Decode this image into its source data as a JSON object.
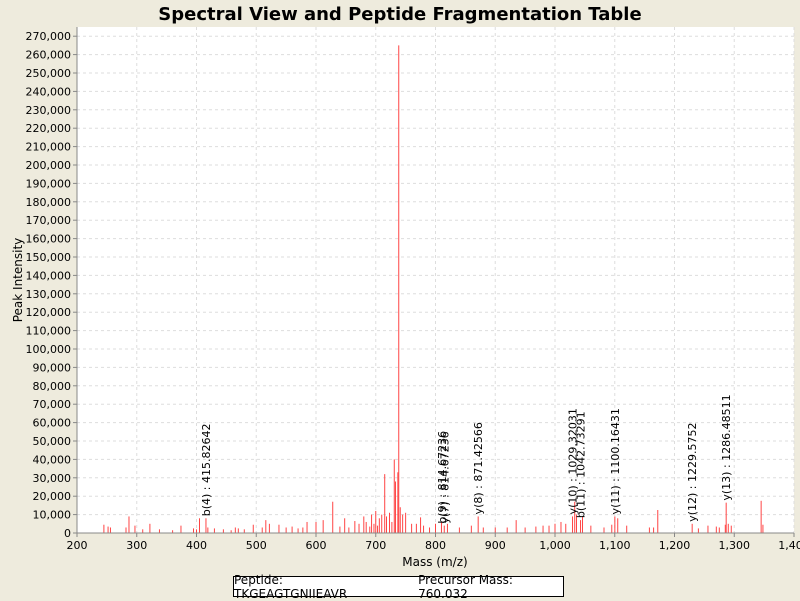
{
  "chart_data": {
    "type": "bar",
    "title": "Spectral View and Peptide Fragmentation Table",
    "xlabel": "Mass (m/z)",
    "ylabel": "Peak Intensity",
    "xlim": [
      200,
      1400
    ],
    "ylim": [
      0,
      275000
    ],
    "x_ticks": [
      200,
      300,
      400,
      500,
      600,
      700,
      800,
      900,
      1000,
      1100,
      1200,
      1300,
      1400
    ],
    "x_tick_labels": [
      "200",
      "300",
      "400",
      "500",
      "600",
      "700",
      "800",
      "900",
      "1,000",
      "1,100",
      "1,200",
      "1,300",
      "1,400"
    ],
    "y_ticks": [
      0,
      10000,
      20000,
      30000,
      40000,
      50000,
      60000,
      70000,
      80000,
      90000,
      100000,
      110000,
      120000,
      130000,
      140000,
      150000,
      160000,
      170000,
      180000,
      190000,
      200000,
      210000,
      220000,
      230000,
      240000,
      250000,
      260000,
      270000
    ],
    "y_tick_labels": [
      "0",
      "10,000",
      "20,000",
      "30,000",
      "40,000",
      "50,000",
      "60,000",
      "70,000",
      "80,000",
      "90,000",
      "100,000",
      "110,000",
      "120,000",
      "130,000",
      "140,000",
      "150,000",
      "160,000",
      "170,000",
      "180,000",
      "190,000",
      "200,000",
      "210,000",
      "220,000",
      "230,000",
      "240,000",
      "250,000",
      "260,000",
      "270,000"
    ],
    "grid": true,
    "peak_color": "#ff4444",
    "peaks": [
      [
        245,
        4500
      ],
      [
        252,
        3500
      ],
      [
        256,
        3000
      ],
      [
        282,
        3000
      ],
      [
        287,
        9000
      ],
      [
        297,
        4000
      ],
      [
        310,
        2000
      ],
      [
        322,
        5000
      ],
      [
        338,
        2000
      ],
      [
        360,
        1500
      ],
      [
        374,
        4000
      ],
      [
        395,
        2500
      ],
      [
        400,
        2000
      ],
      [
        405,
        8000
      ],
      [
        415.82642,
        8000
      ],
      [
        419,
        3000
      ],
      [
        430,
        2500
      ],
      [
        445,
        2000
      ],
      [
        458,
        1500
      ],
      [
        465,
        3000
      ],
      [
        470,
        2500
      ],
      [
        480,
        2000
      ],
      [
        495,
        4500
      ],
      [
        510,
        3000
      ],
      [
        516,
        7000
      ],
      [
        522,
        5000
      ],
      [
        538,
        4500
      ],
      [
        550,
        3000
      ],
      [
        560,
        3500
      ],
      [
        570,
        2500
      ],
      [
        578,
        3000
      ],
      [
        585,
        6000
      ],
      [
        600,
        6000
      ],
      [
        612,
        7000
      ],
      [
        628,
        17000
      ],
      [
        640,
        3500
      ],
      [
        648,
        8000
      ],
      [
        655,
        3000
      ],
      [
        665,
        6500
      ],
      [
        672,
        5000
      ],
      [
        680,
        9000
      ],
      [
        684,
        6000
      ],
      [
        690,
        3500
      ],
      [
        693,
        10000
      ],
      [
        697,
        5000
      ],
      [
        700,
        12000
      ],
      [
        703,
        4000
      ],
      [
        706,
        8000
      ],
      [
        710,
        10000
      ],
      [
        715,
        32000
      ],
      [
        718,
        9000
      ],
      [
        723,
        11000
      ],
      [
        727,
        6000
      ],
      [
        731,
        40000
      ],
      [
        733,
        28000
      ],
      [
        737,
        33000
      ],
      [
        738.5,
        265000
      ],
      [
        741,
        14000
      ],
      [
        745,
        10000
      ],
      [
        750,
        11000
      ],
      [
        760,
        5000
      ],
      [
        768,
        5000
      ],
      [
        775,
        8500
      ],
      [
        780,
        4000
      ],
      [
        790,
        3000
      ],
      [
        800,
        5000
      ],
      [
        810,
        6000
      ],
      [
        814.67,
        4000
      ],
      [
        820,
        5000
      ],
      [
        840,
        3000
      ],
      [
        860,
        4000
      ],
      [
        871.42566,
        9000
      ],
      [
        880,
        3000
      ],
      [
        900,
        3000
      ],
      [
        920,
        3000
      ],
      [
        935,
        7000
      ],
      [
        950,
        3000
      ],
      [
        968,
        3500
      ],
      [
        980,
        4000
      ],
      [
        990,
        4000
      ],
      [
        1000,
        5000
      ],
      [
        1010,
        6000
      ],
      [
        1018,
        5000
      ],
      [
        1029.32031,
        9000
      ],
      [
        1033,
        17000
      ],
      [
        1036,
        10000
      ],
      [
        1042.73291,
        7000
      ],
      [
        1046,
        9000
      ],
      [
        1060,
        4000
      ],
      [
        1082,
        3000
      ],
      [
        1095,
        4500
      ],
      [
        1100.16431,
        9000
      ],
      [
        1105,
        8000
      ],
      [
        1120,
        4000
      ],
      [
        1158,
        3000
      ],
      [
        1165,
        3000
      ],
      [
        1172,
        12500
      ],
      [
        1229.5752,
        5000
      ],
      [
        1240,
        2500
      ],
      [
        1256,
        4000
      ],
      [
        1270,
        3500
      ],
      [
        1275,
        3000
      ],
      [
        1285,
        4500
      ],
      [
        1286.48511,
        16500
      ],
      [
        1290,
        5000
      ],
      [
        1295,
        4000
      ],
      [
        1345,
        17500
      ],
      [
        1348,
        4500
      ]
    ],
    "annotations": [
      {
        "label": "b(4) : 415.82642",
        "x": 415.82642,
        "y": 8000
      },
      {
        "label": "y(7) : 814.67236",
        "x": 814.67236,
        "y": 4000
      },
      {
        "label": "b(9) : 814.67236",
        "x": 810.5,
        "y": 4000
      },
      {
        "label": "y(8) : 871.42566",
        "x": 871.42566,
        "y": 9000
      },
      {
        "label": "y(10) : 1029.32031",
        "x": 1029.32031,
        "y": 9000
      },
      {
        "label": "b(11) : 1042.73291",
        "x": 1042.73291,
        "y": 7000
      },
      {
        "label": "y(11) : 1100.16431",
        "x": 1100.16431,
        "y": 9000
      },
      {
        "label": "y(12) : 1229.5752",
        "x": 1229.5752,
        "y": 5000
      },
      {
        "label": "y(13) : 1286.48511",
        "x": 1286.48511,
        "y": 16500
      }
    ]
  },
  "info": {
    "peptide_label": "Peptide: TKGEAGTGNIIEAVR",
    "precursor_label": "Precursor Mass: 760.032"
  }
}
